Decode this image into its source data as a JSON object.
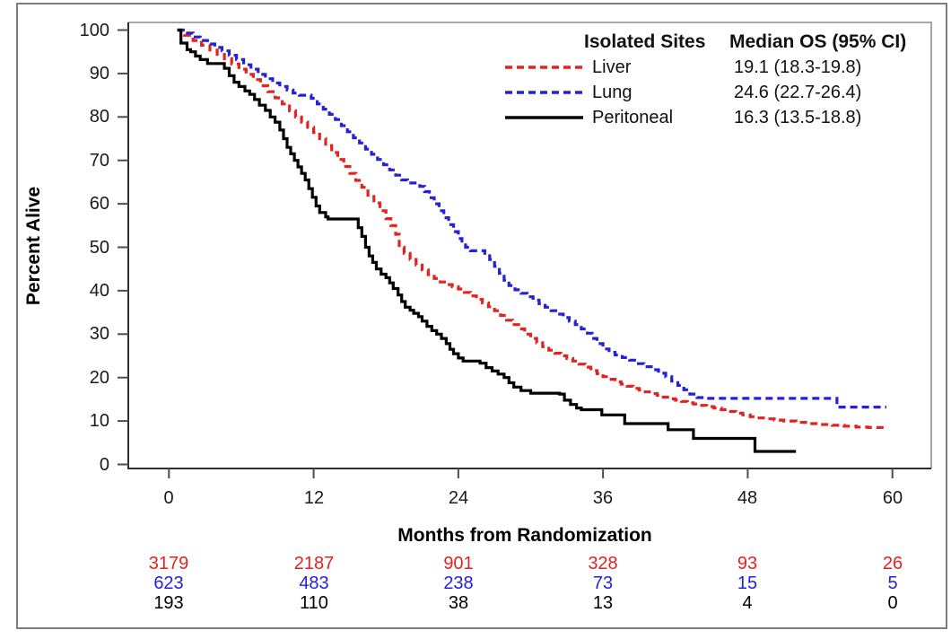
{
  "figure": {
    "y_axis_label": "Percent Alive",
    "x_axis_label": "Months from Randomization",
    "legend": {
      "header_site": "Isolated Sites",
      "header_os": "Median OS (95% CI)",
      "rows": [
        {
          "label": "Liver",
          "value": "19.1 (18.3-19.8)",
          "color": "#E2231F",
          "style": "dashed"
        },
        {
          "label": "Lung",
          "value": "24.6 (22.7-26.4)",
          "color": "#2521D6",
          "style": "dashed"
        },
        {
          "label": "Peritoneal",
          "value": "16.3 (13.5-18.8)",
          "color": "#000000",
          "style": "solid"
        }
      ]
    },
    "at_risk": {
      "rows": [
        {
          "series": "Liver",
          "color": "#E2231F",
          "counts": [
            "3179",
            "2187",
            "901",
            "328",
            "93",
            "26"
          ]
        },
        {
          "series": "Lung",
          "color": "#2521D6",
          "counts": [
            "623",
            "483",
            "238",
            "73",
            "15",
            "5"
          ]
        },
        {
          "series": "Peritoneal",
          "color": "#000000",
          "counts": [
            "193",
            "110",
            "38",
            "13",
            "4",
            "0"
          ]
        }
      ]
    }
  },
  "chart_data": {
    "type": "line",
    "subtype": "kaplan-meier-step",
    "title": "",
    "xlabel": "Months from Randomization",
    "ylabel": "Percent Alive",
    "xlim": [
      0,
      60
    ],
    "ylim": [
      0,
      100
    ],
    "xticks": [
      0,
      12,
      24,
      36,
      48,
      60
    ],
    "yticks": [
      100,
      90,
      80,
      70,
      60,
      50,
      40,
      30,
      20,
      10,
      0
    ],
    "grid": false,
    "legend_position": "top-right-inside",
    "series": [
      {
        "name": "Liver",
        "color": "#E2231F",
        "line_style": "dashed",
        "median_os": "19.1 (18.3-19.8)",
        "at_risk": [
          3179,
          2187,
          901,
          328,
          93,
          26
        ],
        "points": [
          [
            0.7,
            100
          ],
          [
            1.3,
            98.8
          ],
          [
            2,
            97.6
          ],
          [
            2.7,
            96.5
          ],
          [
            3.4,
            95.4
          ],
          [
            4,
            94.4
          ],
          [
            4.6,
            93.4
          ],
          [
            5.2,
            92.2
          ],
          [
            5.8,
            91
          ],
          [
            6.4,
            89.8
          ],
          [
            7,
            88.6
          ],
          [
            7.6,
            87.2
          ],
          [
            8.2,
            85.8
          ],
          [
            8.8,
            84.4
          ],
          [
            9.4,
            83
          ],
          [
            10,
            81.4
          ],
          [
            10.5,
            80
          ],
          [
            11,
            78.8
          ],
          [
            11.5,
            77.6
          ],
          [
            12,
            76.4
          ],
          [
            12.5,
            75
          ],
          [
            13,
            73.4
          ],
          [
            13.5,
            71.8
          ],
          [
            14,
            70.2
          ],
          [
            14.5,
            68.6
          ],
          [
            15,
            67
          ],
          [
            15.5,
            65.4
          ],
          [
            16,
            63.8
          ],
          [
            16.5,
            62
          ],
          [
            17,
            60.2
          ],
          [
            17.5,
            58.4
          ],
          [
            18,
            56.6
          ],
          [
            18.4,
            55
          ],
          [
            18.8,
            53
          ],
          [
            19.1,
            50
          ],
          [
            19.5,
            48.6
          ],
          [
            20,
            47.2
          ],
          [
            20.5,
            45.9
          ],
          [
            21,
            44.8
          ],
          [
            21.5,
            43.7
          ],
          [
            22,
            42.8
          ],
          [
            22.5,
            42
          ],
          [
            23,
            41.4
          ],
          [
            23.5,
            40.9
          ],
          [
            24,
            40.4
          ],
          [
            24.5,
            39.6
          ],
          [
            25,
            38.8
          ],
          [
            25.5,
            38
          ],
          [
            26,
            37.2
          ],
          [
            26.5,
            36.3
          ],
          [
            27,
            35.4
          ],
          [
            27.5,
            34.3
          ],
          [
            28,
            33.2
          ],
          [
            28.5,
            32.2
          ],
          [
            29,
            31.2
          ],
          [
            29.5,
            30
          ],
          [
            30,
            29
          ],
          [
            30.5,
            28
          ],
          [
            31,
            27.1
          ],
          [
            31.5,
            26.3
          ],
          [
            32,
            25.6
          ],
          [
            32.5,
            25
          ],
          [
            33,
            24.4
          ],
          [
            33.5,
            23.8
          ],
          [
            34,
            23.1
          ],
          [
            34.5,
            22.4
          ],
          [
            35,
            21.6
          ],
          [
            35.5,
            20.9
          ],
          [
            36,
            20.2
          ],
          [
            36.5,
            19.6
          ],
          [
            37,
            19
          ],
          [
            37.5,
            18.5
          ],
          [
            38,
            18
          ],
          [
            38.5,
            17.5
          ],
          [
            39,
            17.1
          ],
          [
            39.5,
            16.7
          ],
          [
            40,
            16.3
          ],
          [
            40.5,
            15.9
          ],
          [
            41,
            15.5
          ],
          [
            41.5,
            15.1
          ],
          [
            42,
            14.8
          ],
          [
            42.5,
            14.5
          ],
          [
            43,
            14.2
          ],
          [
            43.5,
            13.9
          ],
          [
            44,
            13.6
          ],
          [
            44.6,
            13.3
          ],
          [
            45.2,
            13
          ],
          [
            45.8,
            12.6
          ],
          [
            46.4,
            12.2
          ],
          [
            47,
            11.8
          ],
          [
            47.6,
            11.4
          ],
          [
            48.2,
            11
          ],
          [
            48.8,
            10.7
          ],
          [
            49.5,
            10.5
          ],
          [
            50.2,
            10.2
          ],
          [
            51,
            10
          ],
          [
            52,
            9.7
          ],
          [
            53,
            9.4
          ],
          [
            54,
            9.2
          ],
          [
            55,
            9
          ],
          [
            56,
            8.8
          ],
          [
            57,
            8.6
          ],
          [
            58,
            8.5
          ],
          [
            59.4,
            8.3
          ]
        ]
      },
      {
        "name": "Lung",
        "color": "#2521D6",
        "line_style": "dashed",
        "median_os": "24.6 (22.7-26.4)",
        "at_risk": [
          623,
          483,
          238,
          73,
          15,
          5
        ],
        "points": [
          [
            0.7,
            100
          ],
          [
            1.2,
            99.3
          ],
          [
            2,
            98.4
          ],
          [
            2.6,
            97.6
          ],
          [
            3.2,
            96.8
          ],
          [
            3.8,
            96
          ],
          [
            4.4,
            95.2
          ],
          [
            5,
            94.2
          ],
          [
            5.6,
            93.2
          ],
          [
            6.2,
            92
          ],
          [
            6.8,
            91
          ],
          [
            7.4,
            89.8
          ],
          [
            8,
            88.8
          ],
          [
            8.6,
            87.8
          ],
          [
            9.2,
            87
          ],
          [
            9.8,
            86.2
          ],
          [
            10.3,
            85.5
          ],
          [
            10.8,
            85
          ],
          [
            11.8,
            84.3
          ],
          [
            12.3,
            83
          ],
          [
            12.8,
            81.8
          ],
          [
            13.3,
            80.6
          ],
          [
            13.8,
            79.4
          ],
          [
            14.3,
            78
          ],
          [
            14.8,
            76.6
          ],
          [
            15.3,
            75.2
          ],
          [
            15.8,
            74
          ],
          [
            16.3,
            72.6
          ],
          [
            16.8,
            71.4
          ],
          [
            17.3,
            70.2
          ],
          [
            17.8,
            69
          ],
          [
            18.3,
            67.8
          ],
          [
            18.8,
            66.6
          ],
          [
            19.3,
            65.5
          ],
          [
            19.8,
            64.8
          ],
          [
            20.8,
            64
          ],
          [
            21.2,
            62.8
          ],
          [
            21.6,
            61.4
          ],
          [
            22,
            60
          ],
          [
            22.4,
            58.4
          ],
          [
            22.8,
            56.8
          ],
          [
            23.2,
            55.2
          ],
          [
            23.6,
            53.6
          ],
          [
            24,
            52
          ],
          [
            24.3,
            51
          ],
          [
            24.6,
            50
          ],
          [
            25,
            49.2
          ],
          [
            26.2,
            48.6
          ],
          [
            26.6,
            47.2
          ],
          [
            27,
            45.6
          ],
          [
            27.4,
            44
          ],
          [
            27.8,
            42.4
          ],
          [
            28.2,
            41.2
          ],
          [
            28.7,
            40.2
          ],
          [
            29.2,
            39.4
          ],
          [
            29.7,
            38.6
          ],
          [
            30.2,
            37.8
          ],
          [
            30.7,
            37
          ],
          [
            31.2,
            36.2
          ],
          [
            31.7,
            35.4
          ],
          [
            32.2,
            34.6
          ],
          [
            32.7,
            33.8
          ],
          [
            33.2,
            33
          ],
          [
            33.7,
            32.2
          ],
          [
            34.2,
            31.2
          ],
          [
            34.7,
            30.2
          ],
          [
            35.1,
            29
          ],
          [
            35.5,
            27.8
          ],
          [
            36,
            26.6
          ],
          [
            36.5,
            25.8
          ],
          [
            37,
            25.2
          ],
          [
            37.6,
            24.6
          ],
          [
            38.2,
            24
          ],
          [
            38.8,
            23.2
          ],
          [
            39.4,
            22.5
          ],
          [
            40,
            21.8
          ],
          [
            40.6,
            21
          ],
          [
            41.2,
            20.2
          ],
          [
            41.7,
            19.2
          ],
          [
            42.2,
            18.2
          ],
          [
            42.7,
            17.2
          ],
          [
            43.2,
            16.2
          ],
          [
            43.8,
            15.4
          ],
          [
            44.5,
            15.2
          ],
          [
            55.3,
            15.2
          ],
          [
            55.4,
            13.2
          ],
          [
            59.5,
            13.2
          ]
        ]
      },
      {
        "name": "Peritoneal",
        "color": "#000000",
        "line_style": "solid",
        "median_os": "16.3 (13.5-18.8)",
        "at_risk": [
          193,
          110,
          38,
          13,
          4,
          0
        ],
        "points": [
          [
            0.7,
            100
          ],
          [
            1,
            97
          ],
          [
            1.5,
            95.5
          ],
          [
            1.8,
            95
          ],
          [
            2.2,
            94
          ],
          [
            2.6,
            93.2
          ],
          [
            3.2,
            92.3
          ],
          [
            4.6,
            91.2
          ],
          [
            5,
            89.5
          ],
          [
            5.4,
            88
          ],
          [
            5.8,
            87
          ],
          [
            6.3,
            86
          ],
          [
            6.7,
            85.2
          ],
          [
            7.1,
            84
          ],
          [
            7.5,
            82.7
          ],
          [
            8,
            81.5
          ],
          [
            8.4,
            80
          ],
          [
            8.8,
            78.8
          ],
          [
            9.2,
            77
          ],
          [
            9.5,
            75
          ],
          [
            9.8,
            73
          ],
          [
            10.1,
            71.5
          ],
          [
            10.4,
            70
          ],
          [
            10.7,
            68.5
          ],
          [
            11,
            67
          ],
          [
            11.3,
            65.5
          ],
          [
            11.6,
            63.5
          ],
          [
            11.9,
            61.5
          ],
          [
            12.2,
            59.5
          ],
          [
            12.5,
            58
          ],
          [
            13,
            57
          ],
          [
            13.2,
            56.5
          ],
          [
            15.4,
            56.5
          ],
          [
            15.7,
            54.5
          ],
          [
            16,
            52.5
          ],
          [
            16.3,
            50
          ],
          [
            16.6,
            48
          ],
          [
            16.9,
            46.5
          ],
          [
            17.2,
            45
          ],
          [
            17.6,
            43.8
          ],
          [
            18,
            43
          ],
          [
            18.3,
            41.8
          ],
          [
            18.6,
            40.5
          ],
          [
            19,
            39
          ],
          [
            19.3,
            37.5
          ],
          [
            19.6,
            36.2
          ],
          [
            20,
            35.5
          ],
          [
            20.3,
            34.8
          ],
          [
            20.7,
            34
          ],
          [
            21,
            33
          ],
          [
            21.4,
            31.8
          ],
          [
            21.8,
            30.8
          ],
          [
            22.2,
            30
          ],
          [
            22.6,
            29
          ],
          [
            23,
            27.8
          ],
          [
            23.3,
            26.5
          ],
          [
            23.6,
            25.5
          ],
          [
            24,
            24.5
          ],
          [
            24.4,
            23.8
          ],
          [
            25.8,
            23.3
          ],
          [
            26.3,
            22.3
          ],
          [
            26.8,
            21.5
          ],
          [
            27.3,
            20.8
          ],
          [
            27.8,
            20
          ],
          [
            28.2,
            18.8
          ],
          [
            28.6,
            17.8
          ],
          [
            29.2,
            17
          ],
          [
            30,
            16.4
          ],
          [
            32.4,
            16.2
          ],
          [
            32.8,
            14.8
          ],
          [
            33.3,
            13.8
          ],
          [
            33.8,
            13
          ],
          [
            34.2,
            12.6
          ],
          [
            35.8,
            12.6
          ],
          [
            35.9,
            11.4
          ],
          [
            37.7,
            11.4
          ],
          [
            37.8,
            9.4
          ],
          [
            41.3,
            9.4
          ],
          [
            41.4,
            8
          ],
          [
            43.4,
            8
          ],
          [
            43.5,
            6
          ],
          [
            48.5,
            6
          ],
          [
            48.6,
            3
          ],
          [
            52,
            3
          ]
        ]
      }
    ]
  }
}
